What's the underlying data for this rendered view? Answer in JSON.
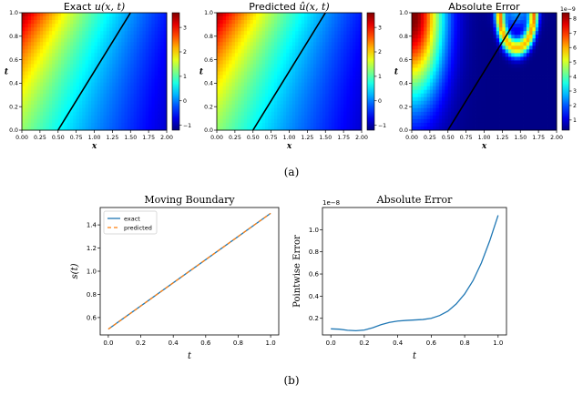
{
  "panel_labels": [
    "(a)",
    "(b)"
  ],
  "chart_data": [
    {
      "type": "heatmap",
      "title_prefix": "Exact ",
      "title_math": "u(x, t)",
      "xlabel": "x",
      "ylabel": "t",
      "xlim": [
        0,
        2
      ],
      "ylim": [
        0,
        1
      ],
      "xticks": [
        "0.00",
        "0.25",
        "0.50",
        "0.75",
        "1.00",
        "1.25",
        "1.50",
        "1.75",
        "2.00"
      ],
      "yticks": [
        "0.0",
        "0.2",
        "0.4",
        "0.6",
        "0.8",
        "1.0"
      ],
      "colorbar": {
        "min": -1.2,
        "max": 3.6,
        "ticks": [
          "−1",
          "0",
          "1",
          "2",
          "3"
        ],
        "tick_values": [
          -1,
          0,
          1,
          2,
          3
        ],
        "exponent": ""
      },
      "colormap": "jet",
      "boundary_line": {
        "x": [
          0.5,
          1.5
        ],
        "t": [
          0,
          1
        ]
      }
    },
    {
      "type": "heatmap",
      "title_prefix": "Predicted ",
      "title_math": "û(x, t)",
      "xlabel": "x",
      "ylabel": "t",
      "xlim": [
        0,
        2
      ],
      "ylim": [
        0,
        1
      ],
      "xticks": [
        "0.00",
        "0.25",
        "0.50",
        "0.75",
        "1.00",
        "1.25",
        "1.50",
        "1.75",
        "2.00"
      ],
      "yticks": [
        "0.0",
        "0.2",
        "0.4",
        "0.6",
        "0.8",
        "1.0"
      ],
      "colorbar": {
        "min": -1.2,
        "max": 3.6,
        "ticks": [
          "−1",
          "0",
          "1",
          "2",
          "3"
        ],
        "tick_values": [
          -1,
          0,
          1,
          2,
          3
        ],
        "exponent": ""
      },
      "colormap": "jet",
      "boundary_line": {
        "x": [
          0.5,
          1.5
        ],
        "t": [
          0,
          1
        ]
      }
    },
    {
      "type": "heatmap",
      "title_prefix": "Absolute Error",
      "title_math": "",
      "xlabel": "x",
      "ylabel": "t",
      "xlim": [
        0,
        2
      ],
      "ylim": [
        0,
        1
      ],
      "xticks": [
        "0.00",
        "0.25",
        "0.50",
        "0.75",
        "1.00",
        "1.25",
        "1.50",
        "1.75",
        "2.00"
      ],
      "yticks": [
        "0.0",
        "0.2",
        "0.4",
        "0.6",
        "0.8",
        "1.0"
      ],
      "colorbar": {
        "min": 0.3,
        "max": 8.4,
        "ticks": [
          "1",
          "2",
          "3",
          "4",
          "5",
          "6",
          "7",
          "8"
        ],
        "tick_values": [
          1,
          2,
          3,
          4,
          5,
          6,
          7,
          8
        ],
        "exponent": "1e−9"
      },
      "colormap": "jet",
      "boundary_line": {
        "x": [
          0.5,
          1.5
        ],
        "t": [
          0,
          1
        ]
      }
    },
    {
      "type": "line",
      "title": "Moving Boundary",
      "xlabel": "t",
      "ylabel": "s(t)",
      "xlim": [
        -0.05,
        1.05
      ],
      "ylim": [
        0.45,
        1.55
      ],
      "xticks": [
        0.0,
        0.2,
        0.4,
        0.6,
        0.8,
        1.0
      ],
      "yticks": [
        0.6,
        0.8,
        1.0,
        1.2,
        1.4
      ],
      "legend": "top-left",
      "series": [
        {
          "name": "exact",
          "color": "#1f77b4",
          "dash": "",
          "x": [
            0,
            1
          ],
          "y": [
            0.5,
            1.5
          ]
        },
        {
          "name": "predicted",
          "color": "#ff7f0e",
          "dash": "4,3",
          "x": [
            0,
            1
          ],
          "y": [
            0.5,
            1.5
          ]
        }
      ]
    },
    {
      "type": "line",
      "title": "Absolute Error",
      "xlabel": "t",
      "ylabel": "Pointwise Error",
      "exponent": "1e−8",
      "xlim": [
        -0.05,
        1.05
      ],
      "ylim": [
        0.05,
        1.2
      ],
      "xticks": [
        0.0,
        0.2,
        0.4,
        0.6,
        0.8,
        1.0
      ],
      "yticks": [
        0.2,
        0.4,
        0.6,
        0.8,
        1.0
      ],
      "series": [
        {
          "name": "",
          "color": "#1f77b4",
          "dash": "",
          "x": [
            0.0,
            0.05,
            0.1,
            0.15,
            0.2,
            0.25,
            0.3,
            0.35,
            0.4,
            0.45,
            0.5,
            0.55,
            0.6,
            0.65,
            0.7,
            0.75,
            0.8,
            0.85,
            0.9,
            0.95,
            1.0
          ],
          "y": [
            0.105,
            0.102,
            0.092,
            0.088,
            0.094,
            0.115,
            0.142,
            0.163,
            0.175,
            0.181,
            0.185,
            0.189,
            0.2,
            0.225,
            0.265,
            0.33,
            0.42,
            0.54,
            0.7,
            0.9,
            1.13
          ]
        }
      ]
    }
  ]
}
